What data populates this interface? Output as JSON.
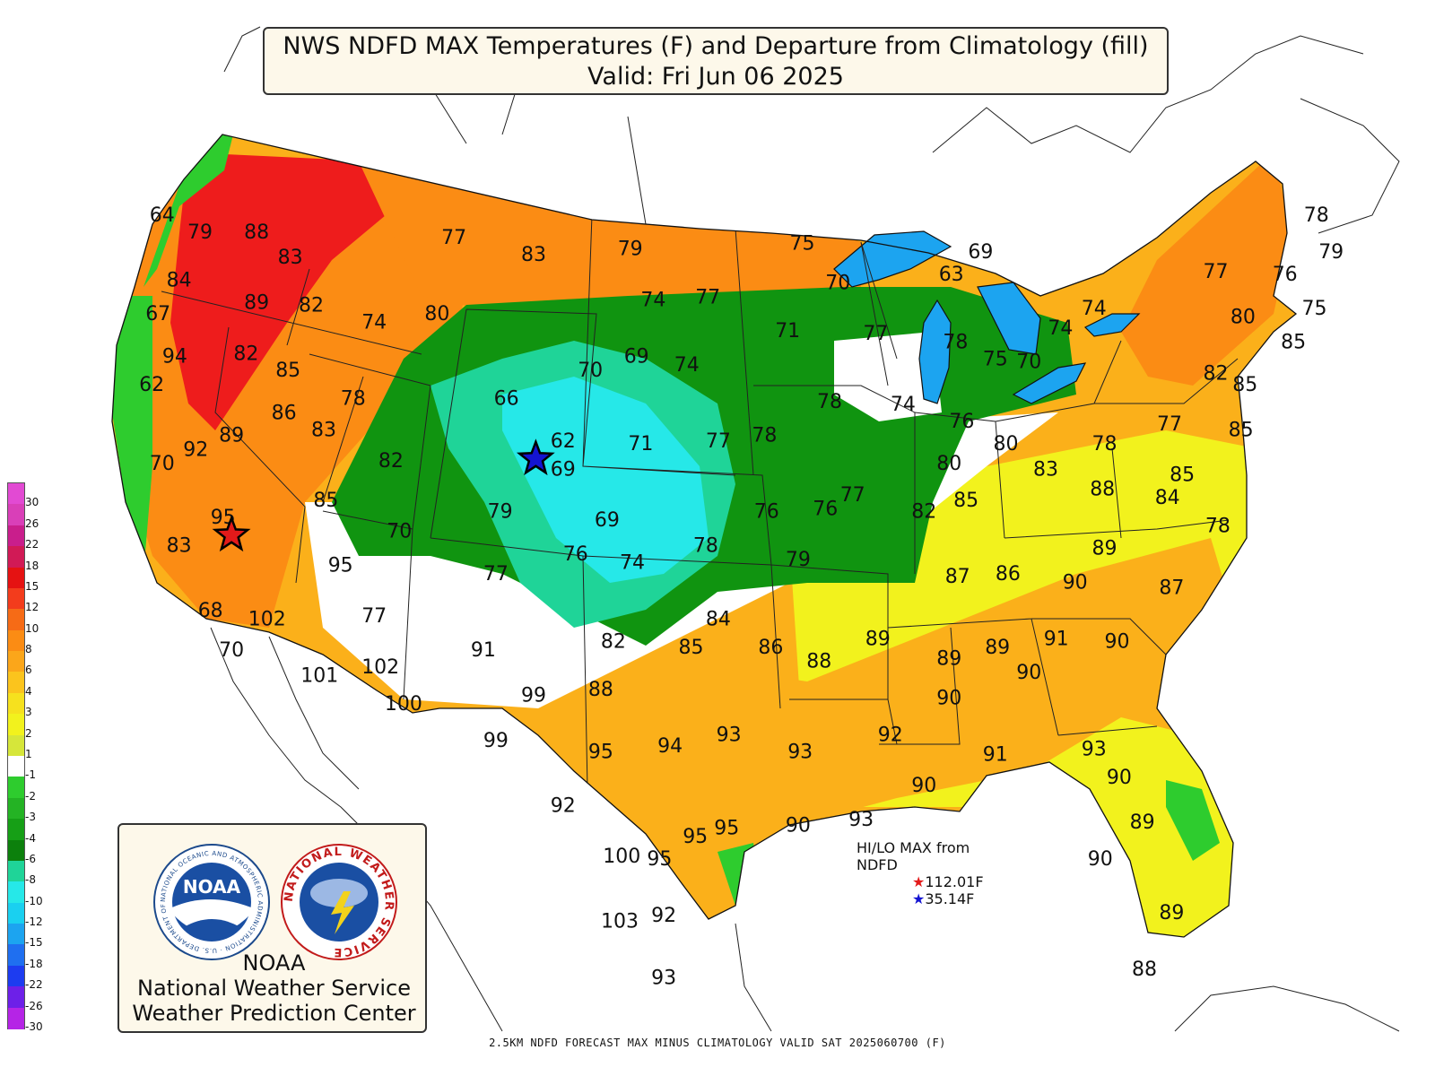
{
  "title": {
    "line1": "NWS NDFD MAX Temperatures (F) and Departure from Climatology (fill)",
    "line2": "Valid: Fri Jun 06 2025"
  },
  "colors": {
    "very_warm": "#ee1c1c",
    "warm_orange": "#fb8c14",
    "warm_amber": "#fbb01a",
    "slightly_warm": "#f2f21d",
    "near_normal": "#ffffff",
    "slightly_cool": "#2ecc2e",
    "cool_green": "#109410",
    "cooler_teal": "#1fd498",
    "cold_cyan": "#26e8e8",
    "colder_blue": "#1ca4f0"
  },
  "legend": [
    {
      "label": "30",
      "color": "#e24ad3"
    },
    {
      "label": "26",
      "color": "#d93fb8"
    },
    {
      "label": "22",
      "color": "#c91e8c"
    },
    {
      "label": "18",
      "color": "#d11a56"
    },
    {
      "label": "15",
      "color": "#e51212"
    },
    {
      "label": "12",
      "color": "#f33c1c"
    },
    {
      "label": "10",
      "color": "#f66b16"
    },
    {
      "label": "8",
      "color": "#fb8c14"
    },
    {
      "label": "6",
      "color": "#fba61a"
    },
    {
      "label": "4",
      "color": "#fbc41d"
    },
    {
      "label": "3",
      "color": "#f6e11e"
    },
    {
      "label": "2",
      "color": "#f2f21d"
    },
    {
      "label": "1",
      "color": "#d6e63a"
    },
    {
      "label": "-1",
      "color": "#ffffff"
    },
    {
      "label": "-2",
      "color": "#2ecc2e"
    },
    {
      "label": "-3",
      "color": "#24b324"
    },
    {
      "label": "-4",
      "color": "#169f16"
    },
    {
      "label": "-6",
      "color": "#0c800c"
    },
    {
      "label": "-8",
      "color": "#1fd498"
    },
    {
      "label": "-10",
      "color": "#26e8e8"
    },
    {
      "label": "-12",
      "color": "#1ad0f0"
    },
    {
      "label": "-15",
      "color": "#1ca4f0"
    },
    {
      "label": "-18",
      "color": "#1f6ff0"
    },
    {
      "label": "-22",
      "color": "#1d3cf0"
    },
    {
      "label": "-26",
      "color": "#6d20e8"
    },
    {
      "label": "-30",
      "color": "#b524e6"
    }
  ],
  "temperature_labels": [
    {
      "t": "64",
      "lon": -123.9,
      "lat": 48.9
    },
    {
      "t": "79",
      "lon": -122.1,
      "lat": 48.3
    },
    {
      "t": "88",
      "lon": -119.4,
      "lat": 48.3
    },
    {
      "t": "83",
      "lon": -117.8,
      "lat": 47.4
    },
    {
      "t": "84",
      "lon": -123.1,
      "lat": 46.6
    },
    {
      "t": "89",
      "lon": -119.4,
      "lat": 45.8
    },
    {
      "t": "82",
      "lon": -116.8,
      "lat": 45.7
    },
    {
      "t": "67",
      "lon": -124.1,
      "lat": 45.4
    },
    {
      "t": "94",
      "lon": -123.3,
      "lat": 43.9
    },
    {
      "t": "82",
      "lon": -119.9,
      "lat": 44.0
    },
    {
      "t": "85",
      "lon": -117.9,
      "lat": 43.4
    },
    {
      "t": "62",
      "lon": -124.4,
      "lat": 42.9
    },
    {
      "t": "74",
      "lon": -113.8,
      "lat": 45.1
    },
    {
      "t": "80",
      "lon": -110.8,
      "lat": 45.4
    },
    {
      "t": "77",
      "lon": -110.0,
      "lat": 48.1
    },
    {
      "t": "83",
      "lon": -106.2,
      "lat": 47.5
    },
    {
      "t": "79",
      "lon": -101.6,
      "lat": 47.7
    },
    {
      "t": "75",
      "lon": -93.4,
      "lat": 47.9
    },
    {
      "t": "74",
      "lon": -100.5,
      "lat": 45.9
    },
    {
      "t": "77",
      "lon": -97.9,
      "lat": 46.0
    },
    {
      "t": "70",
      "lon": -91.7,
      "lat": 46.5
    },
    {
      "t": "63",
      "lon": -86.3,
      "lat": 46.8
    },
    {
      "t": "69",
      "lon": -84.9,
      "lat": 47.6
    },
    {
      "t": "78",
      "lon": -114.8,
      "lat": 42.4
    },
    {
      "t": "86",
      "lon": -118.1,
      "lat": 41.9
    },
    {
      "t": "83",
      "lon": -116.2,
      "lat": 41.3
    },
    {
      "t": "89",
      "lon": -120.6,
      "lat": 41.1
    },
    {
      "t": "92",
      "lon": -122.3,
      "lat": 40.6
    },
    {
      "t": "70",
      "lon": -123.9,
      "lat": 40.1
    },
    {
      "t": "82",
      "lon": -113.0,
      "lat": 40.2
    },
    {
      "t": "66",
      "lon": -107.5,
      "lat": 42.4
    },
    {
      "t": "70",
      "lon": -103.5,
      "lat": 43.4
    },
    {
      "t": "69",
      "lon": -101.3,
      "lat": 43.9
    },
    {
      "t": "74",
      "lon": -98.9,
      "lat": 43.6
    },
    {
      "t": "71",
      "lon": -94.1,
      "lat": 44.8
    },
    {
      "t": "77",
      "lon": -89.9,
      "lat": 44.7
    },
    {
      "t": "78",
      "lon": -86.1,
      "lat": 44.4
    },
    {
      "t": "75",
      "lon": -84.2,
      "lat": 43.8
    },
    {
      "t": "70",
      "lon": -82.6,
      "lat": 43.7
    },
    {
      "t": "74",
      "lon": -79.5,
      "lat": 45.6
    },
    {
      "t": "74",
      "lon": -81.1,
      "lat": 44.9
    },
    {
      "t": "77",
      "lon": -73.7,
      "lat": 46.9
    },
    {
      "t": "76",
      "lon": -70.4,
      "lat": 46.8
    },
    {
      "t": "78",
      "lon": -68.9,
      "lat": 48.9
    },
    {
      "t": "79",
      "lon": -68.2,
      "lat": 47.6
    },
    {
      "t": "75",
      "lon": -69.0,
      "lat": 45.6
    },
    {
      "t": "80",
      "lon": -72.4,
      "lat": 45.3
    },
    {
      "t": "85",
      "lon": -70.0,
      "lat": 44.4
    },
    {
      "t": "82",
      "lon": -73.7,
      "lat": 43.3
    },
    {
      "t": "85",
      "lon": -72.3,
      "lat": 42.9
    },
    {
      "t": "85",
      "lon": -72.5,
      "lat": 41.3
    },
    {
      "t": "77",
      "lon": -75.9,
      "lat": 41.5
    },
    {
      "t": "78",
      "lon": -79.0,
      "lat": 40.8
    },
    {
      "t": "62",
      "lon": -104.8,
      "lat": 40.9
    },
    {
      "t": "69",
      "lon": -104.8,
      "lat": 39.9
    },
    {
      "t": "71",
      "lon": -101.1,
      "lat": 40.8
    },
    {
      "t": "77",
      "lon": -97.4,
      "lat": 40.9
    },
    {
      "t": "78",
      "lon": -95.2,
      "lat": 41.1
    },
    {
      "t": "78",
      "lon": -92.1,
      "lat": 42.3
    },
    {
      "t": "74",
      "lon": -88.6,
      "lat": 42.2
    },
    {
      "t": "76",
      "lon": -85.8,
      "lat": 41.6
    },
    {
      "t": "80",
      "lon": -83.7,
      "lat": 40.8
    },
    {
      "t": "80",
      "lon": -86.4,
      "lat": 40.1
    },
    {
      "t": "83",
      "lon": -81.8,
      "lat": 39.9
    },
    {
      "t": "88",
      "lon": -79.1,
      "lat": 39.2
    },
    {
      "t": "85",
      "lon": -75.3,
      "lat": 39.7
    },
    {
      "t": "84",
      "lon": -76.0,
      "lat": 38.9
    },
    {
      "t": "78",
      "lon": -73.6,
      "lat": 37.9
    },
    {
      "t": "85",
      "lon": -116.1,
      "lat": 38.8
    },
    {
      "t": "95",
      "lon": -121.0,
      "lat": 38.2
    },
    {
      "t": "83",
      "lon": -123.1,
      "lat": 37.2
    },
    {
      "t": "95",
      "lon": -115.4,
      "lat": 36.5
    },
    {
      "t": "70",
      "lon": -112.6,
      "lat": 37.7
    },
    {
      "t": "79",
      "lon": -107.8,
      "lat": 38.4
    },
    {
      "t": "69",
      "lon": -102.7,
      "lat": 38.1
    },
    {
      "t": "76",
      "lon": -104.2,
      "lat": 36.9
    },
    {
      "t": "74",
      "lon": -101.5,
      "lat": 36.6
    },
    {
      "t": "77",
      "lon": -108.0,
      "lat": 36.2
    },
    {
      "t": "78",
      "lon": -98.0,
      "lat": 37.2
    },
    {
      "t": "76",
      "lon": -95.1,
      "lat": 38.4
    },
    {
      "t": "76",
      "lon": -92.3,
      "lat": 38.5
    },
    {
      "t": "77",
      "lon": -91.0,
      "lat": 39.0
    },
    {
      "t": "79",
      "lon": -93.6,
      "lat": 36.7
    },
    {
      "t": "82",
      "lon": -87.6,
      "lat": 38.4
    },
    {
      "t": "85",
      "lon": -85.6,
      "lat": 38.8
    },
    {
      "t": "87",
      "lon": -86.0,
      "lat": 36.1
    },
    {
      "t": "86",
      "lon": -83.6,
      "lat": 36.2
    },
    {
      "t": "90",
      "lon": -80.4,
      "lat": 35.9
    },
    {
      "t": "89",
      "lon": -79.0,
      "lat": 37.1
    },
    {
      "t": "87",
      "lon": -75.8,
      "lat": 35.7
    },
    {
      "t": "68",
      "lon": -121.6,
      "lat": 34.9
    },
    {
      "t": "102",
      "lon": -118.9,
      "lat": 34.6
    },
    {
      "t": "77",
      "lon": -113.8,
      "lat": 34.7
    },
    {
      "t": "70",
      "lon": -120.6,
      "lat": 33.5
    },
    {
      "t": "101",
      "lon": -116.4,
      "lat": 32.6
    },
    {
      "t": "102",
      "lon": -113.5,
      "lat": 32.9
    },
    {
      "t": "100",
      "lon": -112.4,
      "lat": 31.6
    },
    {
      "t": "91",
      "lon": -108.6,
      "lat": 33.5
    },
    {
      "t": "82",
      "lon": -102.4,
      "lat": 33.8
    },
    {
      "t": "84",
      "lon": -97.4,
      "lat": 34.6
    },
    {
      "t": "85",
      "lon": -98.7,
      "lat": 33.6
    },
    {
      "t": "86",
      "lon": -94.9,
      "lat": 33.6
    },
    {
      "t": "88",
      "lon": -92.6,
      "lat": 33.1
    },
    {
      "t": "89",
      "lon": -89.8,
      "lat": 33.9
    },
    {
      "t": "89",
      "lon": -86.4,
      "lat": 33.2
    },
    {
      "t": "89",
      "lon": -84.1,
      "lat": 33.6
    },
    {
      "t": "91",
      "lon": -81.3,
      "lat": 33.9
    },
    {
      "t": "90",
      "lon": -78.4,
      "lat": 33.8
    },
    {
      "t": "90",
      "lon": -82.6,
      "lat": 32.7
    },
    {
      "t": "90",
      "lon": -86.4,
      "lat": 31.8
    },
    {
      "t": "99",
      "lon": -106.2,
      "lat": 31.9
    },
    {
      "t": "88",
      "lon": -103.0,
      "lat": 32.1
    },
    {
      "t": "99",
      "lon": -108.0,
      "lat": 30.3
    },
    {
      "t": "95",
      "lon": -103.0,
      "lat": 29.9
    },
    {
      "t": "94",
      "lon": -99.7,
      "lat": 30.1
    },
    {
      "t": "93",
      "lon": -96.9,
      "lat": 30.5
    },
    {
      "t": "93",
      "lon": -93.5,
      "lat": 29.9
    },
    {
      "t": "92",
      "lon": -89.2,
      "lat": 30.5
    },
    {
      "t": "91",
      "lon": -84.2,
      "lat": 29.8
    },
    {
      "t": "93",
      "lon": -79.5,
      "lat": 30.0
    },
    {
      "t": "90",
      "lon": -78.3,
      "lat": 29.0
    },
    {
      "t": "92",
      "lon": -104.8,
      "lat": 28.0
    },
    {
      "t": "90",
      "lon": -87.6,
      "lat": 28.7
    },
    {
      "t": "93",
      "lon": -90.6,
      "lat": 27.5
    },
    {
      "t": "90",
      "lon": -93.6,
      "lat": 27.3
    },
    {
      "t": "95",
      "lon": -97.0,
      "lat": 27.2
    },
    {
      "t": "95",
      "lon": -98.5,
      "lat": 26.9
    },
    {
      "t": "100",
      "lon": -102.0,
      "lat": 26.2
    },
    {
      "t": "95",
      "lon": -100.2,
      "lat": 26.1
    },
    {
      "t": "89",
      "lon": -77.2,
      "lat": 27.4
    },
    {
      "t": "90",
      "lon": -79.2,
      "lat": 26.1
    },
    {
      "t": "103",
      "lon": -102.1,
      "lat": 23.9
    },
    {
      "t": "92",
      "lon": -100.0,
      "lat": 24.1
    },
    {
      "t": "89",
      "lon": -75.8,
      "lat": 24.2
    },
    {
      "t": "88",
      "lon": -77.1,
      "lat": 22.2
    },
    {
      "t": "93",
      "lon": -100.0,
      "lat": 21.9
    }
  ],
  "markers": {
    "hi": {
      "lon": -120.6,
      "lat": 37.6,
      "color": "#e31a1a"
    },
    "lo": {
      "lon": -106.1,
      "lat": 40.3,
      "color": "#1414d2"
    }
  },
  "hilo": {
    "title": "HI/LO MAX from NDFD",
    "hi_value": "112.01F",
    "lo_value": "35.14F"
  },
  "logos": {
    "noaa_wordmark": "NOAA",
    "noaa_ring": "NATIONAL OCEANIC AND ATMOSPHERIC ADMINISTRATION · U.S. DEPARTMENT OF COMMERCE",
    "nws_ring": "NATIONAL WEATHER SERVICE",
    "line1": "NOAA",
    "line2": "National Weather Service",
    "line3": "Weather Prediction Center"
  },
  "footer": "2.5KM NDFD FORECAST MAX MINUS CLIMATOLOGY VALID SAT 2025060700 (F)"
}
